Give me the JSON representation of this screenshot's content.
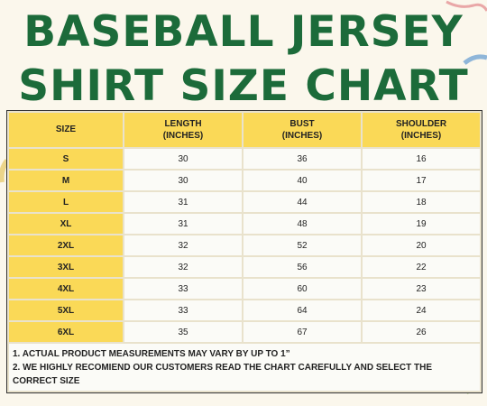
{
  "title": {
    "line1": "BASEBALL JERSEY",
    "line2": "SHIRT SIZE CHART"
  },
  "table": {
    "headers": [
      {
        "line1": "SIZE",
        "line2": ""
      },
      {
        "line1": "LENGTH",
        "line2": "(INCHES)"
      },
      {
        "line1": "BUST",
        "line2": "(INCHES)"
      },
      {
        "line1": "SHOULDER",
        "line2": "(INCHES)"
      }
    ],
    "rows": [
      {
        "size": "S",
        "length": "30",
        "bust": "36",
        "shoulder": "16"
      },
      {
        "size": "M",
        "length": "30",
        "bust": "40",
        "shoulder": "17"
      },
      {
        "size": "L",
        "length": "31",
        "bust": "44",
        "shoulder": "18"
      },
      {
        "size": "XL",
        "length": "31",
        "bust": "48",
        "shoulder": "19"
      },
      {
        "size": "2XL",
        "length": "32",
        "bust": "52",
        "shoulder": "20"
      },
      {
        "size": "3XL",
        "length": "32",
        "bust": "56",
        "shoulder": "22"
      },
      {
        "size": "4XL",
        "length": "33",
        "bust": "60",
        "shoulder": "23"
      },
      {
        "size": "5XL",
        "length": "33",
        "bust": "64",
        "shoulder": "24"
      },
      {
        "size": "6XL",
        "length": "35",
        "bust": "67",
        "shoulder": "26"
      }
    ]
  },
  "notes": [
    "1. ACTUAL PRODUCT MEASUREMENTS MAY VARY BY UP TO 1”",
    "2. WE HIGHLY RECOMIEND OUR CUSTOMERS READ THE CHART CAREFULLY AND SELECT THE",
    "CORRECT SIZE"
  ],
  "colors": {
    "title_green": "#1c6b3a",
    "header_yellow": "#fad957",
    "cell_white": "#fbfbf7",
    "background": "#fbf7ec"
  }
}
